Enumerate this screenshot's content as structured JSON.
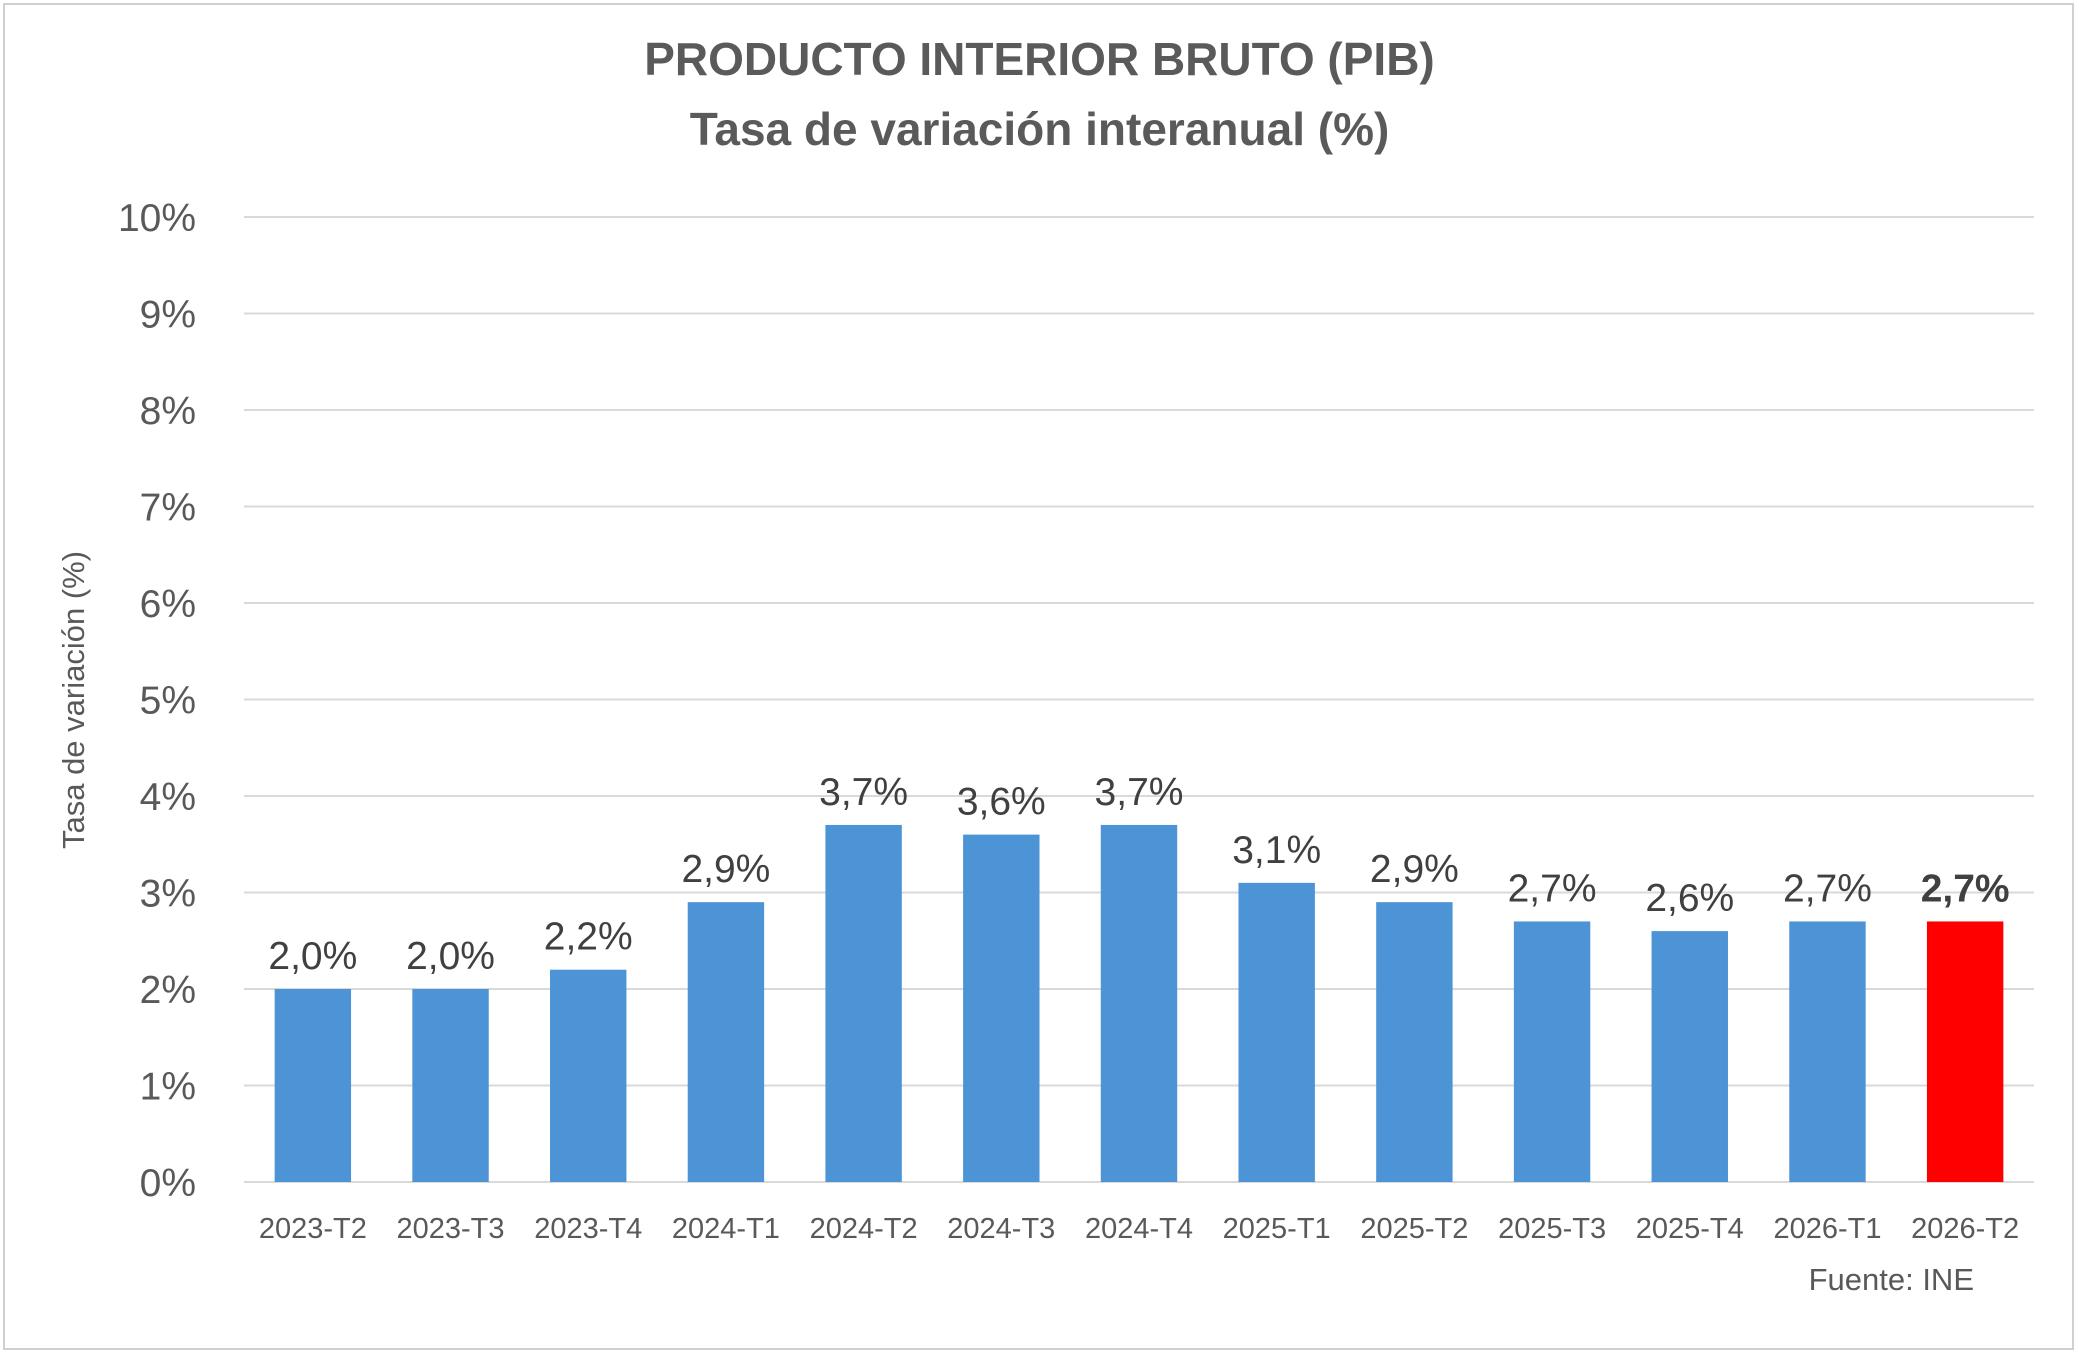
{
  "chart_data": {
    "type": "bar",
    "title": "PRODUCTO INTERIOR BRUTO (PIB)",
    "subtitle": "Tasa de variación interanual (%)",
    "xlabel": "",
    "ylabel": "Tasa de variación (%)",
    "ylim": [
      0,
      10
    ],
    "yticks": [
      0,
      1,
      2,
      3,
      4,
      5,
      6,
      7,
      8,
      9,
      10
    ],
    "ytick_labels": [
      "0%",
      "1%",
      "2%",
      "3%",
      "4%",
      "5%",
      "6%",
      "7%",
      "8%",
      "9%",
      "10%"
    ],
    "categories": [
      "2023-T2",
      "2023-T3",
      "2023-T4",
      "2024-T1",
      "2024-T2",
      "2024-T3",
      "2024-T4",
      "2025-T1",
      "2025-T2",
      "2025-T3",
      "2025-T4",
      "2026-T1",
      "2026-T2"
    ],
    "values": [
      2.0,
      2.0,
      2.2,
      2.9,
      3.7,
      3.6,
      3.7,
      3.1,
      2.9,
      2.7,
      2.6,
      2.7,
      2.7
    ],
    "data_labels": [
      "2,0%",
      "2,0%",
      "2,2%",
      "2,9%",
      "3,7%",
      "3,6%",
      "3,7%",
      "3,1%",
      "2,9%",
      "2,7%",
      "2,6%",
      "2,7%",
      "2,7%"
    ],
    "highlight_index": 12,
    "colors": {
      "bar": "#4d94d6",
      "highlight": "#ff0000",
      "grid": "#d9d9d9",
      "text": "#595959",
      "label": "#404040"
    },
    "grid": true,
    "legend": "none",
    "source": "Fuente: INE"
  }
}
